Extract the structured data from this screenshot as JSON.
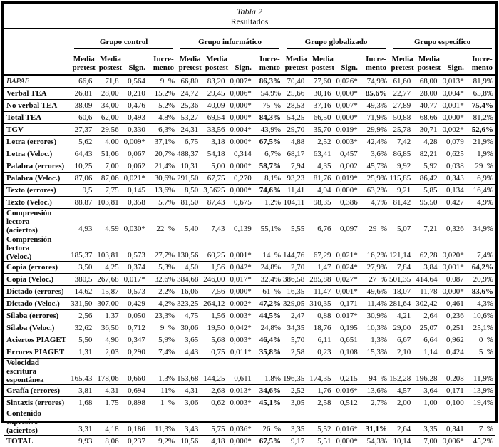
{
  "title": {
    "line1": "Tabla 2",
    "line2": "Resultados"
  },
  "column_groups": [
    "Grupo control",
    "Grupo informático",
    "Grupo globalizado",
    "Grupo específico"
  ],
  "subheaders": [
    "Media\npretest",
    "Media\npostest",
    "Sign.",
    "Incre-\nmento"
  ],
  "rows": [
    {
      "label": "BAPAE",
      "italic": true,
      "tall": false,
      "bold_cells": [
        7
      ],
      "cells": [
        "66,6",
        "71,8",
        "0,564",
        "9  %",
        "66,80",
        "83,20",
        "0,007*",
        "86,3%",
        "70,40",
        "77,60",
        "0,026*",
        "74,9%",
        "61,60",
        "68,00",
        "0,013*",
        "81,9%"
      ]
    },
    {
      "label": "Verbal TEA",
      "italic": false,
      "tall": false,
      "bold_cells": [
        11
      ],
      "cells": [
        "26,81",
        "28,00",
        "0,210",
        "15,2%",
        "24,72",
        "29,45",
        "0,006*",
        "54,9%",
        "25,66",
        "30,16",
        "0,000*",
        "85,6%",
        "22,77",
        "28,00",
        "0,004*",
        "65,8%"
      ]
    },
    {
      "label": "No verbal TEA",
      "italic": false,
      "tall": false,
      "bold_cells": [
        15
      ],
      "cells": [
        "38,09",
        "34,00",
        "0,476",
        "5,2%",
        "25,36",
        "40,09",
        "0,000*",
        "75  %",
        "28,53",
        "37,16",
        "0,007*",
        "49,3%",
        "27,89",
        "40,77",
        "0,001*",
        "75,4%"
      ]
    },
    {
      "label": "Total TEA",
      "italic": false,
      "tall": false,
      "bold_cells": [
        7
      ],
      "cells": [
        "60,6",
        "62,00",
        "0,493",
        "4,8%",
        "53,27",
        "69,54",
        "0,000*",
        "84,3%",
        "54,25",
        "66,50",
        "0,000*",
        "71,9%",
        "50,88",
        "68,66",
        "0,000*",
        "81,2%"
      ]
    },
    {
      "label": "TGV",
      "italic": false,
      "tall": false,
      "bold_cells": [
        15
      ],
      "cells": [
        "27,37",
        "29,56",
        "0,330",
        "6,3%",
        "24,31",
        "33,56",
        "0,004*",
        "43,9%",
        "29,70",
        "35,70",
        "0,019*",
        "29,9%",
        "25,78",
        "30,71",
        "0,002*",
        "52,6%"
      ]
    },
    {
      "label": "Letra (errores)",
      "italic": false,
      "tall": false,
      "bold_cells": [
        7
      ],
      "cells": [
        "5,62",
        "4,00",
        "0,009*",
        "37,1%",
        "6,75",
        "3,18",
        "0,000*",
        "67,5%",
        "4,88",
        "2,52",
        "0,003*",
        "42,4%",
        "7,42",
        "4,28",
        "0,079",
        "21,9%"
      ]
    },
    {
      "label": "Letra (Veloc.)",
      "italic": false,
      "tall": false,
      "bold_cells": [],
      "cells": [
        "64,43",
        "51,06",
        "0,067",
        "20,7%",
        "488,37",
        "54,18",
        "0,314",
        "6,7%",
        "68,17",
        "63,41",
        "0,457",
        "3,6%",
        "86,85",
        "82,21",
        "0,625",
        "1,9%"
      ]
    },
    {
      "label": "Palabra (errores)",
      "italic": false,
      "tall": false,
      "bold_cells": [
        7
      ],
      "cells": [
        "10,25",
        "7,00",
        "0,062",
        "21,4%",
        "10,31",
        "5,00",
        "0,000*",
        "58,7%",
        "7,94",
        "4,35",
        "0,002",
        "45,7%",
        "9,92",
        "5,92",
        "0,038",
        "29  %"
      ]
    },
    {
      "label": "Palabra (Veloc.)",
      "italic": false,
      "tall": false,
      "bold_cells": [],
      "cells": [
        "87,06",
        "87,06",
        "0,021*",
        "30,6%",
        "291,50",
        "67,75",
        "0,270",
        "8,1%",
        "93,23",
        "81,76",
        "0,019*",
        "25,9%",
        "115,85",
        "86,42",
        "0,343",
        "6,9%"
      ]
    },
    {
      "label": "Texto (errores)",
      "italic": false,
      "tall": false,
      "bold_cells": [
        7
      ],
      "cells": [
        "9,5",
        "7,75",
        "0,145",
        "13,6%",
        "8,50",
        "3,5625",
        "0,000*",
        "74,6%",
        "11,41",
        "4,94",
        "0,000*",
        "63,2%",
        "9,21",
        "5,85",
        "0,134",
        "16,4%"
      ]
    },
    {
      "label": "Texto (Veloc.)",
      "italic": false,
      "tall": false,
      "bold_cells": [],
      "cells": [
        "88,87",
        "103,81",
        "0,358",
        "5,7%",
        "81,50",
        "87,43",
        "0,675",
        "1,2%",
        "104,11",
        "98,35",
        "0,386",
        "4,7%",
        "81,42",
        "95,50",
        "0,427",
        "4,9%"
      ]
    },
    {
      "label": "Comprensión lectora\n(aciertos)",
      "italic": false,
      "tall": true,
      "bold_cells": [],
      "cells": [
        "4,93",
        "4,59",
        "0,030*",
        "22  %",
        "5,40",
        "7,43",
        "0,139",
        "55,1%",
        "5,55",
        "6,76",
        "0,097",
        "29  %",
        "5,07",
        "7,21",
        "0,326",
        "34,9%"
      ]
    },
    {
      "label": "Comprensión lectora\n(Veloc.)",
      "italic": false,
      "tall": true,
      "bold_cells": [],
      "cells": [
        "185,37",
        "103,81",
        "0,573",
        "27,7%",
        "130,56",
        "60,25",
        "0,001*",
        "14  %",
        "144,76",
        "67,29",
        "0,021*",
        "16,2%",
        "121,14",
        "62,28",
        "0,020*",
        "7,4%"
      ]
    },
    {
      "label": "Copia (errores)",
      "italic": false,
      "tall": false,
      "bold_cells": [
        15
      ],
      "cells": [
        "3,50",
        "4,25",
        "0,374",
        "5,3%",
        "4,50",
        "1,56",
        "0,042*",
        "24,8%",
        "2,70",
        "1,47",
        "0,024*",
        "27,9%",
        "7,84",
        "3,84",
        "0,001*",
        "64,2%"
      ]
    },
    {
      "label": "Copia (Veloc.)",
      "italic": false,
      "tall": false,
      "bold_cells": [],
      "cells": [
        "380,5",
        "267,68",
        "0,017*",
        "32,6%",
        "384,68",
        "246,00",
        "0,017*",
        "32,4%",
        "386,58",
        "285,88",
        "0,027*",
        "27  %",
        "501,35",
        "414,64",
        "0,087",
        "20,9%"
      ]
    },
    {
      "label": "Dictado (errores)",
      "italic": false,
      "tall": false,
      "bold_cells": [
        15
      ],
      "cells": [
        "14,62",
        "15,87",
        "0,573",
        "2,2%",
        "16,06",
        "7,56",
        "0,000*",
        "61  %",
        "16,35",
        "11,47",
        "0,001*",
        "49,6%",
        "18,07",
        "11,78",
        "0,000*",
        "83,6%"
      ]
    },
    {
      "label": "Dictado (Veloc.)",
      "italic": false,
      "tall": false,
      "bold_cells": [
        7
      ],
      "cells": [
        "331,50",
        "307,00",
        "0,429",
        "4,2%",
        "323,25",
        "264,12",
        "0,002*",
        "47,2%",
        "329,05",
        "310,35",
        "0,171",
        "11,4%",
        "281,64",
        "302,42",
        "0,461",
        "4,3%"
      ]
    },
    {
      "label": "Sílaba (errores)",
      "italic": false,
      "tall": false,
      "bold_cells": [
        7
      ],
      "cells": [
        "2,56",
        "1,37",
        "0,050",
        "23,3%",
        "4,75",
        "1,56",
        "0,003*",
        "44,5%",
        "2,47",
        "0,88",
        "0,017*",
        "30,9%",
        "4,21",
        "2,64",
        "0,236",
        "10,6%"
      ]
    },
    {
      "label": "Sílaba (Veloc.)",
      "italic": false,
      "tall": false,
      "bold_cells": [],
      "cells": [
        "32,62",
        "36,50",
        "0,712",
        "9  %",
        "30,06",
        "19,50",
        "0,042*",
        "24,8%",
        "34,35",
        "18,76",
        "0,195",
        "10,3%",
        "29,00",
        "25,07",
        "0,251",
        "25,1%"
      ]
    },
    {
      "label": "Aciertos PIAGET",
      "italic": false,
      "tall": false,
      "bold_cells": [
        7
      ],
      "cells": [
        "5,50",
        "4,90",
        "0,347",
        "5,9%",
        "3,65",
        "5,68",
        "0,003*",
        "46,4%",
        "5,70",
        "6,11",
        "0,651",
        "1,3%",
        "6,67",
        "6,64",
        "0,962",
        "0  %"
      ]
    },
    {
      "label": "Errores PIAGET",
      "italic": false,
      "tall": false,
      "bold_cells": [
        7
      ],
      "cells": [
        "1,31",
        "2,03",
        "0,290",
        "7,4%",
        "4,43",
        "0,75",
        "0,011*",
        "35,8%",
        "2,58",
        "0,23",
        "0,108",
        "15,3%",
        "2,10",
        "1,14",
        "0,424",
        "5  %"
      ]
    },
    {
      "label": "Velocidad escritura\nespontánea",
      "italic": false,
      "tall": true,
      "bold_cells": [],
      "cells": [
        "165,43",
        "178,06",
        "0,660",
        "1,3%",
        "153,68",
        "144,25",
        "0,611",
        "1,8%",
        "196,35",
        "174,35",
        "0,215",
        "94  %",
        "152,28",
        "196,28",
        "0,208",
        "11,9%"
      ]
    },
    {
      "label": "Grafía (errores)",
      "italic": false,
      "tall": false,
      "bold_cells": [
        7
      ],
      "cells": [
        "3,81",
        "4,31",
        "0,694",
        "11%",
        "4,31",
        "2,68",
        "0,013*",
        "34,6%",
        "2,52",
        "1,76",
        "0,016*",
        "13,6%",
        "4,57",
        "3,64",
        "0,171",
        "13,9%"
      ]
    },
    {
      "label": "Sintaxis (errores)",
      "italic": false,
      "tall": false,
      "bold_cells": [
        7
      ],
      "cells": [
        "1,68",
        "1,75",
        "0,898",
        "1  %",
        "3,06",
        "0,62",
        "0,003*",
        "45,1%",
        "3,05",
        "2,58",
        "0,512",
        "2,7%",
        "2,00",
        "1,00",
        "0,100",
        "19,4%"
      ]
    },
    {
      "label": "Contenido expresivo\n(aciertos)",
      "italic": false,
      "tall": true,
      "bold_cells": [
        11
      ],
      "cells": [
        "3,31",
        "4,18",
        "0,186",
        "11,3%",
        "3,43",
        "5,75",
        "0,036*",
        "26  %",
        "3,35",
        "5,52",
        "0,016*",
        "31,1%",
        "2,64",
        "3,35",
        "0,341",
        "7  %"
      ]
    },
    {
      "label": "TOTAL",
      "italic": false,
      "tall": false,
      "bold_cells": [
        7
      ],
      "cells": [
        "9,93",
        "8,06",
        "0,237",
        "9,2%",
        "10,56",
        "4,18",
        "0,000*",
        "67,5%",
        "9,17",
        "5,51",
        "0,000*",
        "54,3%",
        "10,14",
        "7,00",
        "0,006*",
        "45,2%"
      ]
    }
  ]
}
